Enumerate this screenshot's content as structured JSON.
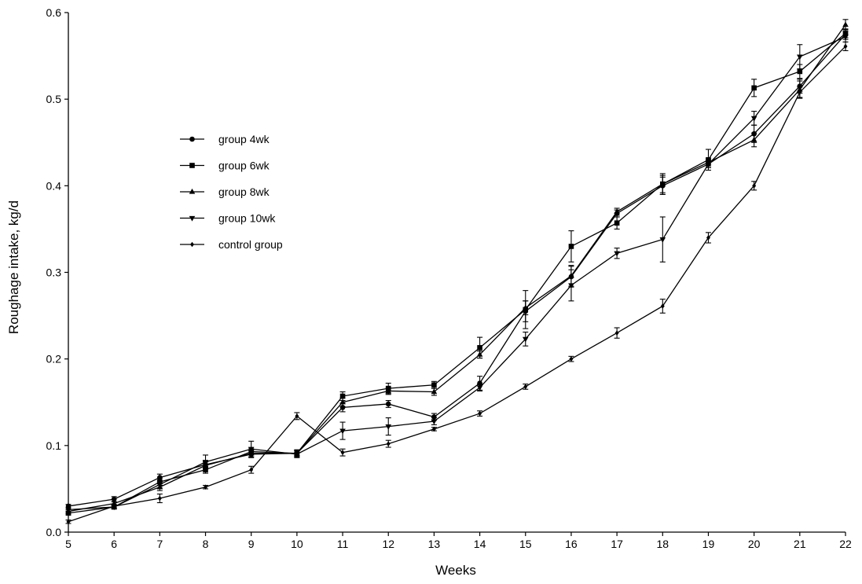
{
  "chart_data": {
    "type": "line",
    "title": "",
    "xlabel": "Weeks",
    "ylabel": "Roughage intake, kg/d",
    "xlim": [
      5,
      22
    ],
    "ylim": [
      0.0,
      0.6
    ],
    "x": [
      5,
      6,
      7,
      8,
      9,
      10,
      11,
      12,
      13,
      14,
      15,
      16,
      17,
      18,
      19,
      20,
      21,
      22
    ],
    "x_ticks": [
      "5",
      "6",
      "7",
      "8",
      "9",
      "10",
      "11",
      "12",
      "13",
      "14",
      "15",
      "16",
      "17",
      "18",
      "19",
      "20",
      "21",
      "22"
    ],
    "y_ticks": [
      "0.0",
      "0.1",
      "0.2",
      "0.3",
      "0.4",
      "0.5",
      "0.6"
    ],
    "y_tick_values": [
      0.0,
      0.1,
      0.2,
      0.3,
      0.4,
      0.5,
      0.6
    ],
    "grid": false,
    "legend_position": "upper-left",
    "series": [
      {
        "name": "group 4wk",
        "marker": "circle",
        "values": [
          0.03,
          0.038,
          0.063,
          0.078,
          0.09,
          0.091,
          0.144,
          0.148,
          0.133,
          0.172,
          0.255,
          0.295,
          0.368,
          0.4,
          0.425,
          0.46,
          0.515,
          0.575
        ],
        "errors": [
          0.002,
          0.003,
          0.004,
          0.004,
          0.004,
          0.003,
          0.005,
          0.004,
          0.004,
          0.008,
          0.012,
          0.012,
          0.004,
          0.01,
          0.004,
          0.01,
          0.008,
          0.006
        ]
      },
      {
        "name": "group 6wk",
        "marker": "square",
        "values": [
          0.022,
          0.029,
          0.058,
          0.072,
          0.093,
          0.091,
          0.157,
          0.166,
          0.17,
          0.213,
          0.257,
          0.33,
          0.357,
          0.402,
          0.43,
          0.513,
          0.532,
          0.576
        ],
        "errors": [
          0.002,
          0.002,
          0.004,
          0.004,
          0.004,
          0.004,
          0.005,
          0.006,
          0.004,
          0.012,
          0.022,
          0.018,
          0.007,
          0.012,
          0.012,
          0.01,
          0.008,
          0.005
        ]
      },
      {
        "name": "group 8wk",
        "marker": "triangle-up",
        "values": [
          0.024,
          0.033,
          0.052,
          0.077,
          0.091,
          0.091,
          0.15,
          0.163,
          0.162,
          0.205,
          0.259,
          0.296,
          0.37,
          0.402,
          0.427,
          0.453,
          0.511,
          0.586
        ],
        "errors": [
          0.002,
          0.002,
          0.004,
          0.004,
          0.004,
          0.004,
          0.005,
          0.004,
          0.004,
          0.004,
          0.008,
          0.012,
          0.004,
          0.01,
          0.004,
          0.008,
          0.01,
          0.006
        ]
      },
      {
        "name": "group 10wk",
        "marker": "triangle-down",
        "values": [
          0.026,
          0.029,
          0.055,
          0.081,
          0.096,
          0.09,
          0.117,
          0.122,
          0.128,
          0.167,
          0.223,
          0.285,
          0.322,
          0.338,
          0.425,
          0.478,
          0.549,
          0.572
        ],
        "errors": [
          0.002,
          0.002,
          0.004,
          0.008,
          0.009,
          0.004,
          0.01,
          0.01,
          0.004,
          0.004,
          0.008,
          0.018,
          0.006,
          0.026,
          0.004,
          0.008,
          0.014,
          0.006
        ]
      },
      {
        "name": "control group",
        "marker": "diamond",
        "values": [
          0.012,
          0.03,
          0.039,
          0.052,
          0.072,
          0.134,
          0.092,
          0.102,
          0.119,
          0.137,
          0.168,
          0.2,
          0.23,
          0.261,
          0.34,
          0.4,
          0.508,
          0.561
        ],
        "errors": [
          0.002,
          0.002,
          0.005,
          0.002,
          0.004,
          0.004,
          0.004,
          0.004,
          0.002,
          0.003,
          0.003,
          0.003,
          0.006,
          0.008,
          0.006,
          0.005,
          0.006,
          0.005
        ]
      }
    ]
  }
}
